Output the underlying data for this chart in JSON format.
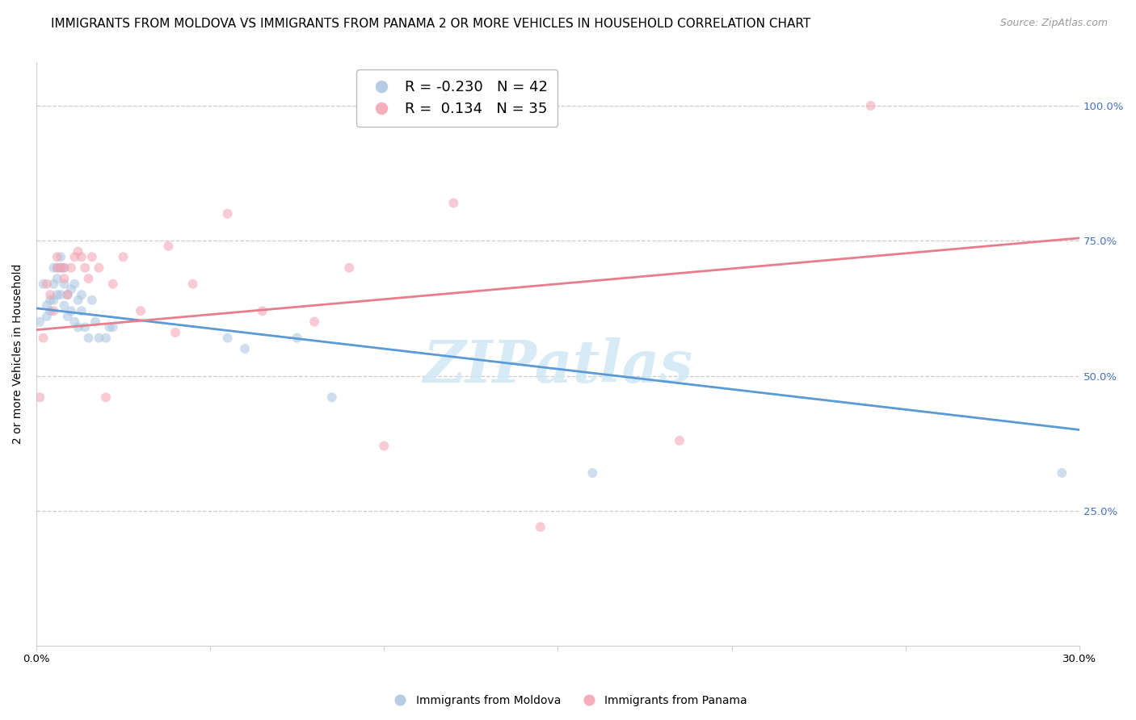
{
  "title": "IMMIGRANTS FROM MOLDOVA VS IMMIGRANTS FROM PANAMA 2 OR MORE VEHICLES IN HOUSEHOLD CORRELATION CHART",
  "source": "Source: ZipAtlas.com",
  "ylabel": "2 or more Vehicles in Household",
  "legend_entries": [
    {
      "label": "Immigrants from Moldova",
      "R": -0.23,
      "N": 42,
      "color": "#a8c4e0"
    },
    {
      "label": "Immigrants from Panama",
      "R": 0.134,
      "N": 35,
      "color": "#f4a0b0"
    }
  ],
  "moldova_scatter_x": [
    0.001,
    0.002,
    0.003,
    0.003,
    0.004,
    0.004,
    0.005,
    0.005,
    0.005,
    0.006,
    0.006,
    0.006,
    0.007,
    0.007,
    0.007,
    0.008,
    0.008,
    0.008,
    0.009,
    0.009,
    0.01,
    0.01,
    0.011,
    0.011,
    0.012,
    0.012,
    0.013,
    0.013,
    0.014,
    0.015,
    0.016,
    0.017,
    0.018,
    0.02,
    0.021,
    0.022,
    0.055,
    0.06,
    0.075,
    0.085,
    0.16,
    0.295
  ],
  "moldova_scatter_y": [
    0.6,
    0.67,
    0.63,
    0.61,
    0.64,
    0.62,
    0.7,
    0.67,
    0.64,
    0.7,
    0.68,
    0.65,
    0.72,
    0.7,
    0.65,
    0.7,
    0.67,
    0.63,
    0.65,
    0.61,
    0.66,
    0.62,
    0.67,
    0.6,
    0.64,
    0.59,
    0.65,
    0.62,
    0.59,
    0.57,
    0.64,
    0.6,
    0.57,
    0.57,
    0.59,
    0.59,
    0.57,
    0.55,
    0.57,
    0.46,
    0.32,
    0.32
  ],
  "panama_scatter_x": [
    0.001,
    0.002,
    0.003,
    0.004,
    0.005,
    0.006,
    0.006,
    0.007,
    0.008,
    0.008,
    0.009,
    0.01,
    0.011,
    0.012,
    0.013,
    0.014,
    0.015,
    0.016,
    0.018,
    0.02,
    0.022,
    0.025,
    0.03,
    0.038,
    0.04,
    0.045,
    0.055,
    0.065,
    0.08,
    0.09,
    0.1,
    0.12,
    0.145,
    0.185,
    0.24
  ],
  "panama_scatter_y": [
    0.46,
    0.57,
    0.67,
    0.65,
    0.62,
    0.72,
    0.7,
    0.7,
    0.7,
    0.68,
    0.65,
    0.7,
    0.72,
    0.73,
    0.72,
    0.7,
    0.68,
    0.72,
    0.7,
    0.46,
    0.67,
    0.72,
    0.62,
    0.74,
    0.58,
    0.67,
    0.8,
    0.62,
    0.6,
    0.7,
    0.37,
    0.82,
    0.22,
    0.38,
    1.0
  ],
  "moldova_line_x": [
    0.0,
    0.3
  ],
  "moldova_line_y": [
    0.625,
    0.4
  ],
  "panama_line_x": [
    0.0,
    0.3
  ],
  "panama_line_y": [
    0.585,
    0.755
  ],
  "dashed_line_x": [
    0.0,
    0.3
  ],
  "dashed_line_y": [
    0.625,
    0.4
  ],
  "xlim": [
    0.0,
    0.3
  ],
  "ylim": [
    0.0,
    1.08
  ],
  "background_color": "#ffffff",
  "scatter_alpha": 0.55,
  "scatter_size": 75,
  "line_width": 2.0,
  "title_fontsize": 11,
  "axis_label_fontsize": 10,
  "tick_fontsize": 9.5,
  "legend_fontsize": 13,
  "source_fontsize": 9
}
